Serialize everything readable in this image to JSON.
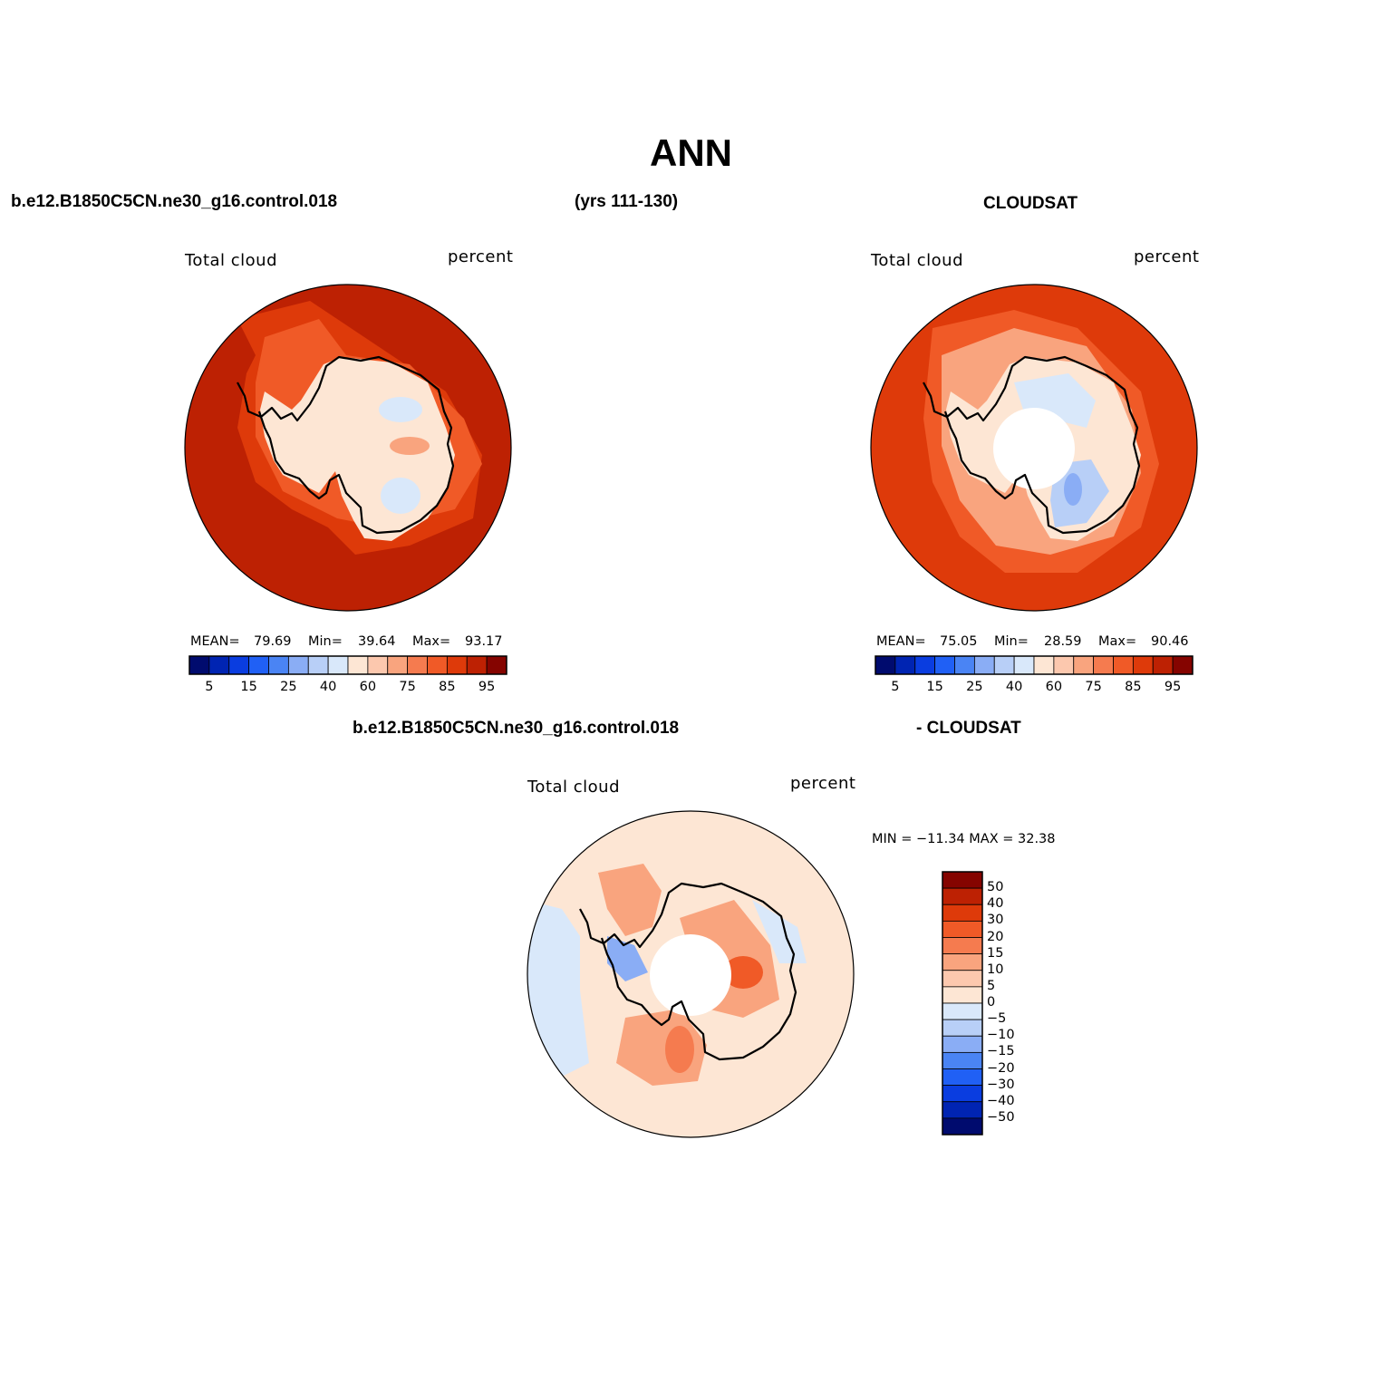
{
  "title": "ANN",
  "header": {
    "case_name": "b.e12.B1850C5CN.ne30_g16.control.018",
    "years": "(yrs 111-130)",
    "obs_name": "CLOUDSAT",
    "diff_case": "b.e12.B1850C5CN.ne30_g16.control.018",
    "diff_obs": "- CLOUDSAT"
  },
  "panels": [
    {
      "id": "model",
      "variable": "Total cloud",
      "units": "percent",
      "stats": {
        "mean_label": "MEAN=",
        "mean": "79.69",
        "min_label": "Min=",
        "min": "39.64",
        "max_label": "Max=",
        "max": "93.17"
      }
    },
    {
      "id": "obs",
      "variable": "Total cloud",
      "units": "percent",
      "stats": {
        "mean_label": "MEAN=",
        "mean": "75.05",
        "min_label": "Min=",
        "min": "28.59",
        "max_label": "Max=",
        "max": "90.46"
      }
    },
    {
      "id": "diff",
      "variable": "Total cloud",
      "units": "percent",
      "stats": {
        "minmax": "MIN = −11.34 MAX =   32.38"
      }
    }
  ],
  "colorbar_abs": {
    "colors": [
      "#000b6e",
      "#0024b2",
      "#0a3de0",
      "#2060f5",
      "#4a84f4",
      "#8aadf5",
      "#b8cff7",
      "#d9e8fa",
      "#fde6d4",
      "#fcc8ae",
      "#f9a47e",
      "#f57b4f",
      "#f05a27",
      "#de3a0a",
      "#bd2103",
      "#850400"
    ],
    "labels": [
      "5",
      "15",
      "25",
      "40",
      "60",
      "75",
      "85",
      "95"
    ]
  },
  "colorbar_diff": {
    "colors": [
      "#850400",
      "#bd2103",
      "#de3a0a",
      "#f05a27",
      "#f57b4f",
      "#f9a47e",
      "#fcc8ae",
      "#fde6d4",
      "#d9e8fa",
      "#b8cff7",
      "#8aadf5",
      "#4a84f4",
      "#2060f5",
      "#0a3de0",
      "#0024b2",
      "#000b6e"
    ],
    "labels": [
      "50",
      "40",
      "30",
      "20",
      "15",
      "10",
      "5",
      "0",
      "−5",
      "−10",
      "−15",
      "−20",
      "−30",
      "−40",
      "−50"
    ]
  },
  "map_colors": {
    "ocean_model": "#bd2103",
    "ring_model": "#de3a0a",
    "ocean_obs": "#de3a0a",
    "ring_obs": "#f05a27",
    "coast_light": "#fde6d4",
    "diff_base": "#fde6d4",
    "coastline": "#000000"
  }
}
